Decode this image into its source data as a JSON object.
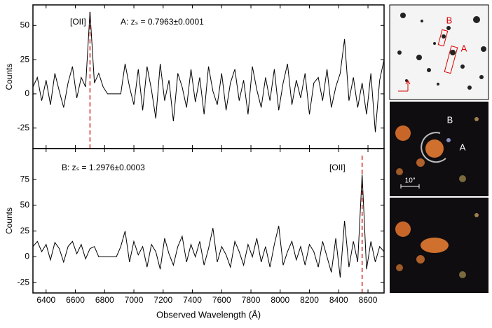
{
  "chart_data": [
    {
      "type": "line",
      "ylabel": "Counts",
      "annotations": [
        "[OII]",
        "A: zₛ = 0.7963±0.0001"
      ],
      "vlines": [
        6700
      ],
      "vline_color": "#d62728",
      "color": "#000000",
      "xlim": [
        6310,
        8710
      ],
      "ylim": [
        -40,
        65
      ],
      "yticks": [
        -25,
        0,
        25,
        50
      ],
      "x": [
        6310,
        6340,
        6370,
        6400,
        6430,
        6460,
        6490,
        6520,
        6550,
        6580,
        6610,
        6640,
        6670,
        6700,
        6730,
        6760,
        6790,
        6820,
        6850,
        6880,
        6910,
        6940,
        6970,
        7000,
        7030,
        7060,
        7090,
        7120,
        7150,
        7180,
        7210,
        7240,
        7270,
        7300,
        7330,
        7360,
        7390,
        7420,
        7450,
        7480,
        7510,
        7540,
        7570,
        7600,
        7630,
        7660,
        7690,
        7720,
        7750,
        7780,
        7810,
        7840,
        7870,
        7900,
        7930,
        7960,
        7990,
        8020,
        8050,
        8080,
        8110,
        8140,
        8170,
        8200,
        8230,
        8260,
        8290,
        8320,
        8350,
        8380,
        8410,
        8440,
        8470,
        8500,
        8530,
        8560,
        8590,
        8620,
        8650,
        8680,
        8710
      ],
      "values": [
        5,
        12,
        -5,
        10,
        -8,
        15,
        2,
        -10,
        8,
        20,
        -3,
        12,
        5,
        60,
        8,
        15,
        5,
        0,
        0,
        0,
        0,
        22,
        5,
        -8,
        18,
        -12,
        20,
        3,
        -18,
        22,
        -5,
        10,
        -20,
        15,
        5,
        -10,
        18,
        -6,
        12,
        -15,
        20,
        2,
        -8,
        15,
        -12,
        8,
        18,
        -5,
        10,
        -15,
        20,
        3,
        -10,
        12,
        -5,
        18,
        -12,
        8,
        22,
        -8,
        10,
        -3,
        15,
        -15,
        8,
        12,
        -5,
        18,
        -10,
        5,
        15,
        40,
        -5,
        12,
        -10,
        8,
        -15,
        15,
        -28,
        10,
        25
      ]
    },
    {
      "type": "line",
      "ylabel": "Counts",
      "xlabel": "Observed Wavelength (Å)",
      "annotations": [
        "B: zₛ = 1.2976±0.0003",
        "[OII]"
      ],
      "vlines": [
        8560
      ],
      "vline_color": "#d62728",
      "color": "#000000",
      "xlim": [
        6310,
        8710
      ],
      "ylim": [
        -35,
        105
      ],
      "yticks": [
        -25,
        0,
        25,
        50,
        75
      ],
      "xticks": [
        6400,
        6600,
        6800,
        7000,
        7200,
        7400,
        7600,
        7800,
        8000,
        8200,
        8400,
        8600
      ],
      "x": [
        6310,
        6340,
        6370,
        6400,
        6430,
        6460,
        6490,
        6520,
        6550,
        6580,
        6610,
        6640,
        6670,
        6700,
        6730,
        6760,
        6790,
        6820,
        6850,
        6880,
        6910,
        6940,
        6970,
        7000,
        7030,
        7060,
        7090,
        7120,
        7150,
        7180,
        7210,
        7240,
        7270,
        7300,
        7330,
        7360,
        7390,
        7420,
        7450,
        7480,
        7510,
        7540,
        7570,
        7600,
        7630,
        7660,
        7690,
        7720,
        7750,
        7780,
        7810,
        7840,
        7870,
        7900,
        7930,
        7960,
        7990,
        8020,
        8050,
        8080,
        8110,
        8140,
        8170,
        8200,
        8230,
        8260,
        8290,
        8320,
        8350,
        8380,
        8410,
        8440,
        8470,
        8500,
        8530,
        8560,
        8590,
        8620,
        8650,
        8680,
        8710
      ],
      "values": [
        10,
        15,
        5,
        12,
        -3,
        14,
        8,
        -5,
        10,
        15,
        3,
        12,
        -2,
        8,
        10,
        0,
        0,
        0,
        0,
        0,
        10,
        25,
        -5,
        15,
        2,
        10,
        -10,
        12,
        5,
        -12,
        18,
        3,
        -8,
        10,
        20,
        -5,
        12,
        0,
        15,
        -8,
        8,
        28,
        -5,
        10,
        2,
        -10,
        15,
        5,
        -8,
        12,
        0,
        18,
        -5,
        10,
        -10,
        12,
        30,
        -8,
        5,
        15,
        -3,
        10,
        -8,
        12,
        5,
        -10,
        15,
        0,
        -15,
        18,
        -20,
        35,
        -10,
        15,
        -5,
        80,
        -12,
        15,
        -5,
        10,
        5
      ]
    }
  ],
  "image_labels": [
    "B",
    "A",
    "B",
    "A",
    "10″"
  ]
}
